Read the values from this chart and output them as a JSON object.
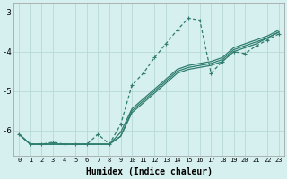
{
  "xlabel": "Humidex (Indice chaleur)",
  "bg_color": "#d6efef",
  "grid_color": "#b8d8d8",
  "line_color": "#2e7d6e",
  "x_values": [
    0,
    1,
    2,
    3,
    4,
    5,
    6,
    7,
    8,
    9,
    10,
    11,
    12,
    13,
    14,
    15,
    16,
    17,
    18,
    19,
    20,
    21,
    22,
    23
  ],
  "line_main_y": [
    -6.1,
    -6.35,
    -6.35,
    -6.3,
    -6.35,
    -6.35,
    -6.35,
    -6.1,
    -6.35,
    -5.85,
    -4.85,
    -4.55,
    -4.15,
    -3.8,
    -3.45,
    -3.15,
    -3.2,
    -4.55,
    -4.25,
    -4.0,
    -4.05,
    -3.85,
    -3.7,
    -3.55
  ],
  "line_a_y": [
    -6.1,
    -6.35,
    -6.35,
    -6.35,
    -6.35,
    -6.35,
    -6.35,
    -6.35,
    -6.35,
    -6.15,
    -5.55,
    -5.3,
    -5.05,
    -4.8,
    -4.55,
    -4.45,
    -4.4,
    -4.35,
    -4.25,
    -4.0,
    -3.9,
    -3.8,
    -3.65,
    -3.5
  ],
  "line_b_y": [
    -6.1,
    -6.35,
    -6.35,
    -6.35,
    -6.35,
    -6.35,
    -6.35,
    -6.35,
    -6.35,
    -6.15,
    -5.5,
    -5.25,
    -5.0,
    -4.75,
    -4.5,
    -4.4,
    -4.35,
    -4.3,
    -4.2,
    -3.95,
    -3.85,
    -3.75,
    -3.65,
    -3.5
  ],
  "line_c_y": [
    -6.1,
    -6.35,
    -6.35,
    -6.35,
    -6.35,
    -6.35,
    -6.35,
    -6.35,
    -6.35,
    -6.05,
    -5.45,
    -5.2,
    -4.95,
    -4.7,
    -4.45,
    -4.35,
    -4.3,
    -4.25,
    -4.15,
    -3.9,
    -3.8,
    -3.7,
    -3.6,
    -3.45
  ],
  "ylim": [
    -6.65,
    -2.75
  ],
  "xlim": [
    -0.5,
    23.5
  ],
  "yticks": [
    -6,
    -5,
    -4,
    -3
  ],
  "xticks": [
    0,
    1,
    2,
    3,
    4,
    5,
    6,
    7,
    8,
    9,
    10,
    11,
    12,
    13,
    14,
    15,
    16,
    17,
    18,
    19,
    20,
    21,
    22,
    23
  ]
}
